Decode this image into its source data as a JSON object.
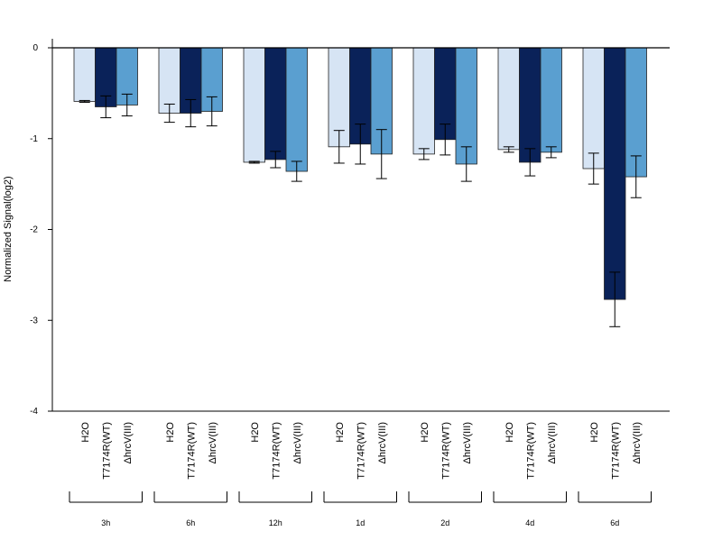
{
  "chart_data": {
    "type": "bar",
    "ylabel": "Normalized Signal(log2)",
    "xlabel": "",
    "ylim": [
      -4,
      0
    ],
    "yticks": [
      0,
      -1,
      -2,
      -3,
      -4
    ],
    "ytick_labels": [
      "0",
      "-1",
      "-2",
      "-3",
      "-4"
    ],
    "series_labels": [
      "H2O",
      "T7174R(WT)",
      "ΔhrcV(III)"
    ],
    "colors": [
      "#d6e4f4",
      "#0a2259",
      "#5a9fd0"
    ],
    "groups": [
      {
        "label": "3h",
        "values": [
          -0.59,
          -0.65,
          -0.63
        ],
        "errors": [
          0.01,
          0.12,
          0.12
        ]
      },
      {
        "label": "6h",
        "values": [
          -0.72,
          -0.72,
          -0.7
        ],
        "errors": [
          0.1,
          0.15,
          0.16
        ]
      },
      {
        "label": "12h",
        "values": [
          -1.26,
          -1.23,
          -1.36
        ],
        "errors": [
          0.01,
          0.09,
          0.11
        ]
      },
      {
        "label": "1d",
        "values": [
          -1.09,
          -1.06,
          -1.17
        ],
        "errors": [
          0.18,
          0.22,
          0.27
        ]
      },
      {
        "label": "2d",
        "values": [
          -1.17,
          -1.01,
          -1.28
        ],
        "errors": [
          0.06,
          0.17,
          0.19
        ]
      },
      {
        "label": "4d",
        "values": [
          -1.12,
          -1.26,
          -1.15
        ],
        "errors": [
          0.03,
          0.15,
          0.06
        ]
      },
      {
        "label": "6d",
        "values": [
          -1.33,
          -2.77,
          -1.42
        ],
        "errors": [
          0.17,
          0.3,
          0.23
        ]
      }
    ]
  }
}
